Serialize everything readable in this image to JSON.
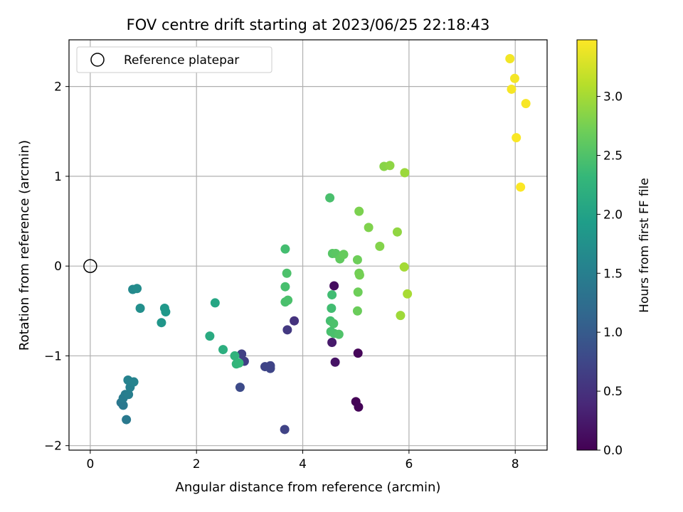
{
  "chart_data": {
    "type": "scatter",
    "title": "FOV centre drift starting at 2023/06/25 22:18:43",
    "xlabel": "Angular distance from reference (arcmin)",
    "ylabel": "Rotation from reference (arcmin)",
    "xlim": [
      -0.4,
      8.6
    ],
    "ylim": [
      -2.05,
      2.52
    ],
    "xticks": [
      0,
      2,
      4,
      6,
      8
    ],
    "yticks": [
      -2,
      -1,
      0,
      1,
      2
    ],
    "xtick_labels": [
      "0",
      "2",
      "4",
      "6",
      "8"
    ],
    "ytick_labels": [
      "−2",
      "−1",
      "0",
      "1",
      "2"
    ],
    "grid": true,
    "legend": {
      "location": "top-left",
      "entries": [
        "Reference platepar"
      ]
    },
    "reference_point": {
      "name": "Reference platepar",
      "x": 0,
      "y": 0
    },
    "colorbar": {
      "label": "Hours from first FF file",
      "colormap": "viridis",
      "range": [
        0.0,
        3.48
      ],
      "ticks": [
        0.0,
        0.5,
        1.0,
        1.5,
        2.0,
        2.5,
        3.0
      ],
      "tick_labels": [
        "0.0",
        "0.5",
        "1.0",
        "1.5",
        "2.0",
        "2.5",
        "3.0"
      ]
    },
    "series": [
      {
        "points": [
          {
            "x": 5.0,
            "y": -1.51,
            "c": 0.02
          },
          {
            "x": 5.05,
            "y": -1.57,
            "c": 0.03
          },
          {
            "x": 5.04,
            "y": -0.97,
            "c": 0.05
          },
          {
            "x": 4.59,
            "y": -0.22,
            "c": 0.12
          },
          {
            "x": 4.61,
            "y": -1.07,
            "c": 0.18
          },
          {
            "x": 4.55,
            "y": -0.85,
            "c": 0.25
          },
          {
            "x": 3.84,
            "y": -0.61,
            "c": 0.5
          },
          {
            "x": 3.71,
            "y": -0.71,
            "c": 0.58
          },
          {
            "x": 3.66,
            "y": -1.82,
            "c": 0.7
          },
          {
            "x": 3.29,
            "y": -1.12,
            "c": 0.72
          },
          {
            "x": 3.39,
            "y": -1.14,
            "c": 0.74
          },
          {
            "x": 3.39,
            "y": -1.11,
            "c": 0.72
          },
          {
            "x": 2.9,
            "y": -1.06,
            "c": 0.65
          },
          {
            "x": 2.85,
            "y": -0.98,
            "c": 0.67
          },
          {
            "x": 2.82,
            "y": -1.35,
            "c": 0.8
          },
          {
            "x": 0.58,
            "y": -1.52,
            "c": 1.38
          },
          {
            "x": 0.62,
            "y": -1.55,
            "c": 1.4
          },
          {
            "x": 0.68,
            "y": -1.71,
            "c": 1.42
          },
          {
            "x": 0.62,
            "y": -1.47,
            "c": 1.44
          },
          {
            "x": 0.66,
            "y": -1.43,
            "c": 1.46
          },
          {
            "x": 0.72,
            "y": -1.43,
            "c": 1.48
          },
          {
            "x": 0.75,
            "y": -1.35,
            "c": 1.52
          },
          {
            "x": 0.71,
            "y": -1.27,
            "c": 1.54
          },
          {
            "x": 0.82,
            "y": -1.29,
            "c": 1.56
          },
          {
            "x": 0.8,
            "y": -0.26,
            "c": 1.65
          },
          {
            "x": 0.88,
            "y": -0.25,
            "c": 1.68
          },
          {
            "x": 0.94,
            "y": -0.47,
            "c": 1.72
          },
          {
            "x": 1.34,
            "y": -0.63,
            "c": 1.82
          },
          {
            "x": 1.4,
            "y": -0.47,
            "c": 1.85
          },
          {
            "x": 1.42,
            "y": -0.51,
            "c": 1.87
          },
          {
            "x": 2.35,
            "y": -0.41,
            "c": 2.05
          },
          {
            "x": 2.25,
            "y": -0.78,
            "c": 2.12
          },
          {
            "x": 2.5,
            "y": -0.93,
            "c": 2.18
          },
          {
            "x": 2.72,
            "y": -1.0,
            "c": 2.25
          },
          {
            "x": 2.75,
            "y": -1.09,
            "c": 2.28
          },
          {
            "x": 2.8,
            "y": -1.08,
            "c": 2.3
          },
          {
            "x": 3.67,
            "y": 0.19,
            "c": 2.42
          },
          {
            "x": 3.7,
            "y": -0.08,
            "c": 2.48
          },
          {
            "x": 3.67,
            "y": -0.23,
            "c": 2.45
          },
          {
            "x": 3.67,
            "y": -0.4,
            "c": 2.46
          },
          {
            "x": 3.72,
            "y": -0.38,
            "c": 2.47
          },
          {
            "x": 4.51,
            "y": 0.76,
            "c": 2.46
          },
          {
            "x": 4.55,
            "y": -0.32,
            "c": 2.4
          },
          {
            "x": 4.54,
            "y": -0.47,
            "c": 2.41
          },
          {
            "x": 4.52,
            "y": -0.61,
            "c": 2.43
          },
          {
            "x": 4.58,
            "y": -0.64,
            "c": 2.48
          },
          {
            "x": 4.53,
            "y": -0.73,
            "c": 2.45
          },
          {
            "x": 4.59,
            "y": -0.75,
            "c": 2.47
          },
          {
            "x": 4.68,
            "y": -0.76,
            "c": 2.5
          },
          {
            "x": 4.56,
            "y": 0.14,
            "c": 2.55
          },
          {
            "x": 4.62,
            "y": 0.14,
            "c": 2.58
          },
          {
            "x": 4.7,
            "y": 0.08,
            "c": 2.62
          },
          {
            "x": 4.77,
            "y": 0.13,
            "c": 2.65
          },
          {
            "x": 5.03,
            "y": 0.07,
            "c": 2.7
          },
          {
            "x": 5.06,
            "y": -0.08,
            "c": 2.72
          },
          {
            "x": 5.07,
            "y": -0.1,
            "c": 2.74
          },
          {
            "x": 5.04,
            "y": -0.29,
            "c": 2.7
          },
          {
            "x": 5.03,
            "y": -0.5,
            "c": 2.68
          },
          {
            "x": 5.06,
            "y": 0.61,
            "c": 2.78
          },
          {
            "x": 5.24,
            "y": 0.43,
            "c": 2.8
          },
          {
            "x": 5.45,
            "y": 0.22,
            "c": 2.82
          },
          {
            "x": 5.53,
            "y": 1.11,
            "c": 2.85
          },
          {
            "x": 5.64,
            "y": 1.12,
            "c": 2.88
          },
          {
            "x": 5.78,
            "y": 0.38,
            "c": 2.9
          },
          {
            "x": 5.92,
            "y": 1.04,
            "c": 2.95
          },
          {
            "x": 5.84,
            "y": -0.55,
            "c": 2.97
          },
          {
            "x": 5.91,
            "y": -0.01,
            "c": 3.0
          },
          {
            "x": 5.97,
            "y": -0.31,
            "c": 3.02
          },
          {
            "x": 7.9,
            "y": 2.31,
            "c": 3.42
          },
          {
            "x": 7.99,
            "y": 2.09,
            "c": 3.43
          },
          {
            "x": 7.93,
            "y": 1.97,
            "c": 3.44
          },
          {
            "x": 8.2,
            "y": 1.81,
            "c": 3.45
          },
          {
            "x": 8.02,
            "y": 1.43,
            "c": 3.46
          },
          {
            "x": 8.1,
            "y": 0.88,
            "c": 3.47
          }
        ]
      }
    ]
  },
  "colors": {
    "grid": "#b0b0b0",
    "viridis": [
      "#440154",
      "#482878",
      "#3e4989",
      "#31688e",
      "#26828e",
      "#1f9e89",
      "#35b779",
      "#6ece58",
      "#b5de2b",
      "#fde725"
    ]
  }
}
